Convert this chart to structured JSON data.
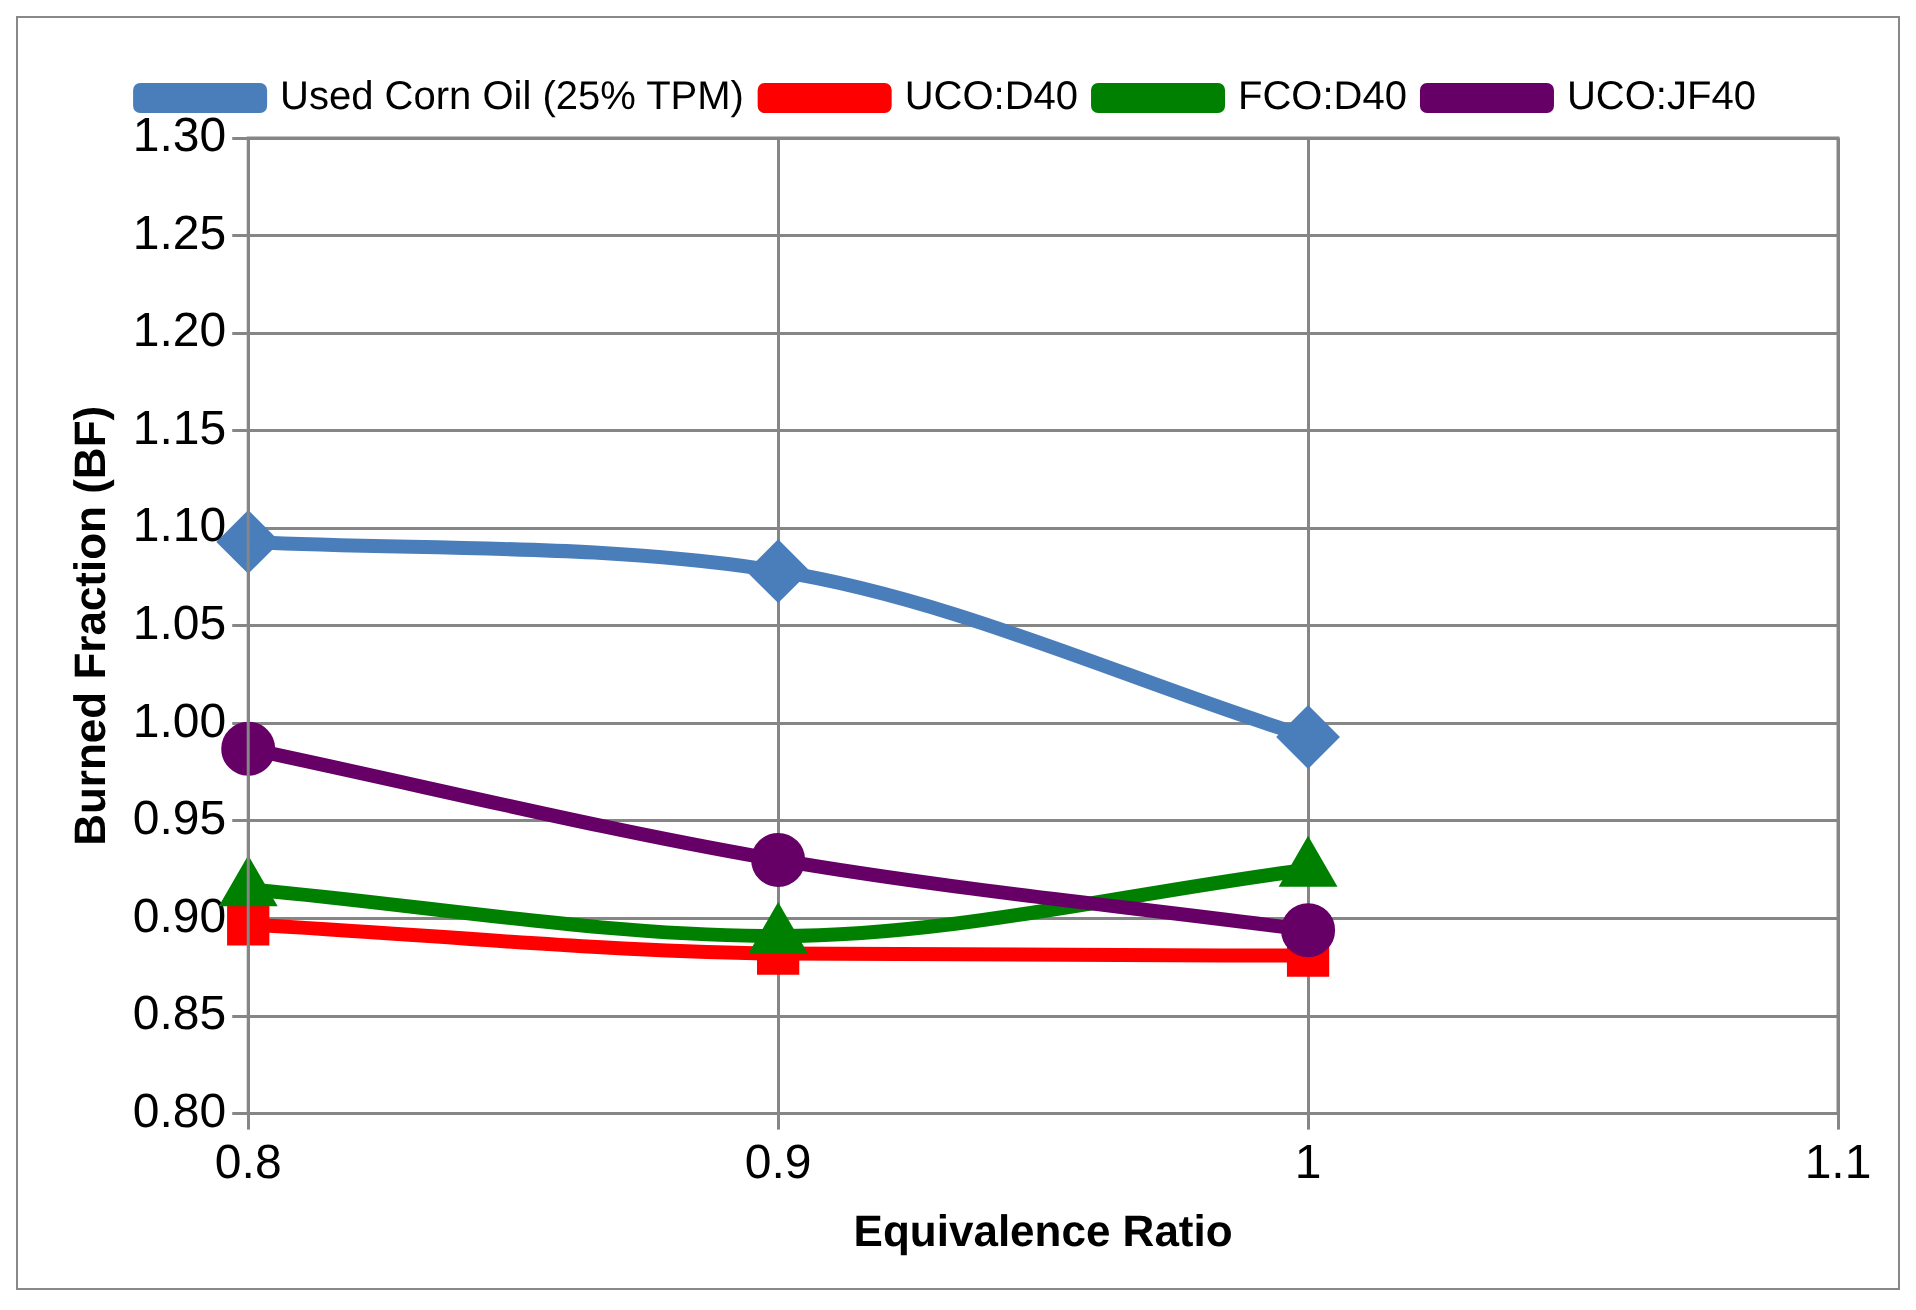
{
  "chart_data": {
    "type": "line",
    "xlabel": "Equivalence Ratio",
    "ylabel": "Burned Fraction (BF)",
    "x": [
      0.8,
      0.9,
      1
    ],
    "series": [
      {
        "name": "Used Corn Oil (25% TPM)",
        "color": "#4a7ebb",
        "marker": "diamond",
        "values": [
          1.093,
          1.078,
          0.993
        ]
      },
      {
        "name": "UCO:D40",
        "color": "#ff0000",
        "marker": "square",
        "values": [
          0.897,
          0.882,
          0.881
        ]
      },
      {
        "name": "FCO:D40",
        "color": "#008000",
        "marker": "triangle",
        "values": [
          0.915,
          0.891,
          0.925
        ]
      },
      {
        "name": "UCO:JF40",
        "color": "#660066",
        "marker": "circle",
        "values": [
          0.987,
          0.93,
          0.894
        ]
      }
    ],
    "xlim": [
      0.8,
      1.1
    ],
    "xticks": [
      0.8,
      0.9,
      1,
      1.1
    ],
    "ylim": [
      0.8,
      1.3
    ],
    "yticks": [
      {
        "value": 0.8,
        "label": "0.80"
      },
      {
        "value": 0.85,
        "label": "0.85"
      },
      {
        "value": 0.9,
        "label": "0.90"
      },
      {
        "value": 0.95,
        "label": "0.95"
      },
      {
        "value": 1.0,
        "label": "1.00"
      },
      {
        "value": 1.05,
        "label": "1.05"
      },
      {
        "value": 1.1,
        "label": "1.10"
      },
      {
        "value": 1.15,
        "label": "1.15"
      },
      {
        "value": 1.2,
        "label": "1.20"
      },
      {
        "value": 1.25,
        "label": "1.25"
      },
      {
        "value": 1.3,
        "label": "1.30"
      }
    ],
    "grid": true,
    "legend": "top",
    "line_style": "solid"
  }
}
